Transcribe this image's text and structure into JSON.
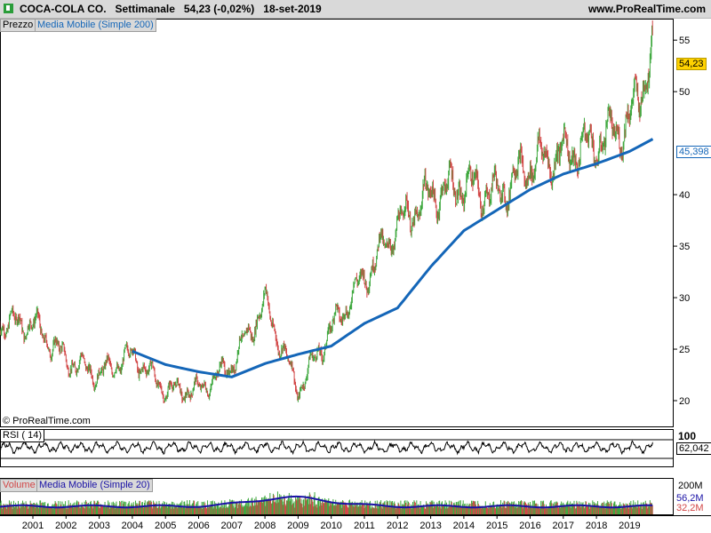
{
  "header": {
    "title": "COCA-COLA CO.   Settimanale   54,23 (-0,02%)   18-set-2019",
    "site": "www.ProRealTime.com"
  },
  "colors": {
    "price_up": "#3ea83e",
    "price_down": "#d24646",
    "ma": "#1466b8",
    "rsi": "#000000",
    "volume_ma": "#1a12a6",
    "last_price_badge": "#ffd200",
    "panel_tab": "#d9d9d9",
    "header_bg": "#d9d9d9"
  },
  "price_panel": {
    "tab_price": "Prezzo",
    "tab_ma": "Media Mobile (Simple 200)",
    "copyright": "© ProRealTime.com",
    "last_price_label": "54,23",
    "ma_last_label": "45,398"
  },
  "rsi_panel": {
    "label": "RSI ( 14)",
    "max_label": "100",
    "last_label": "62,042"
  },
  "volume_panel": {
    "tab_volume": "Volume",
    "tab_ma": "Media Mobile (Simple 20)",
    "max_label": "200M",
    "label_mid": "56,2M",
    "label_low": "32,2M"
  },
  "chart_data": [
    {
      "type": "line",
      "title": "COCA-COLA CO. Settimanale",
      "series": [
        {
          "name": "Prezzo",
          "x": [
            "2001",
            "2002",
            "2003",
            "2004",
            "2005",
            "2006",
            "2007",
            "2008",
            "2009",
            "2010",
            "2011",
            "2012",
            "2013",
            "2014",
            "2015",
            "2016",
            "2017",
            "2018",
            "2019",
            "2019.7"
          ],
          "values": [
            27.5,
            24.0,
            22.5,
            24.5,
            21.0,
            21.0,
            23.5,
            29.5,
            21.0,
            27.0,
            32.0,
            37.0,
            40.0,
            41.0,
            40.0,
            43.0,
            44.0,
            45.0,
            47.0,
            54.23
          ]
        },
        {
          "name": "Media Mobile (Simple 200)",
          "x": [
            "2004",
            "2005",
            "2006",
            "2007",
            "2008",
            "2009",
            "2010",
            "2011",
            "2012",
            "2013",
            "2014",
            "2015",
            "2016",
            "2017",
            "2018",
            "2019",
            "2019.7"
          ],
          "values": [
            24.8,
            23.5,
            22.8,
            22.3,
            23.6,
            24.5,
            25.3,
            27.5,
            29.0,
            33.0,
            36.5,
            38.5,
            40.5,
            42.0,
            43.0,
            44.2,
            45.398
          ]
        }
      ],
      "ylim": [
        17.5,
        57
      ],
      "yticks": [
        20,
        25,
        30,
        35,
        40,
        50,
        55
      ],
      "last_price": 54.23,
      "grid": false,
      "legend": "top-left"
    },
    {
      "type": "line",
      "series": [
        {
          "name": "RSI ( 14)",
          "last": 62.042
        }
      ],
      "ylim": [
        0,
        100
      ]
    },
    {
      "type": "bar",
      "series": [
        {
          "name": "Volume"
        },
        {
          "name": "Media Mobile (Simple 20)"
        }
      ],
      "yticks_labels": [
        "200M",
        "56,2M",
        "32,2M"
      ]
    }
  ],
  "x_axis": {
    "ticks": [
      "2001",
      "2002",
      "2003",
      "2004",
      "2005",
      "2006",
      "2007",
      "2008",
      "2009",
      "2010",
      "2011",
      "2012",
      "2013",
      "2014",
      "2015",
      "2016",
      "2017",
      "2018",
      "2019"
    ]
  }
}
